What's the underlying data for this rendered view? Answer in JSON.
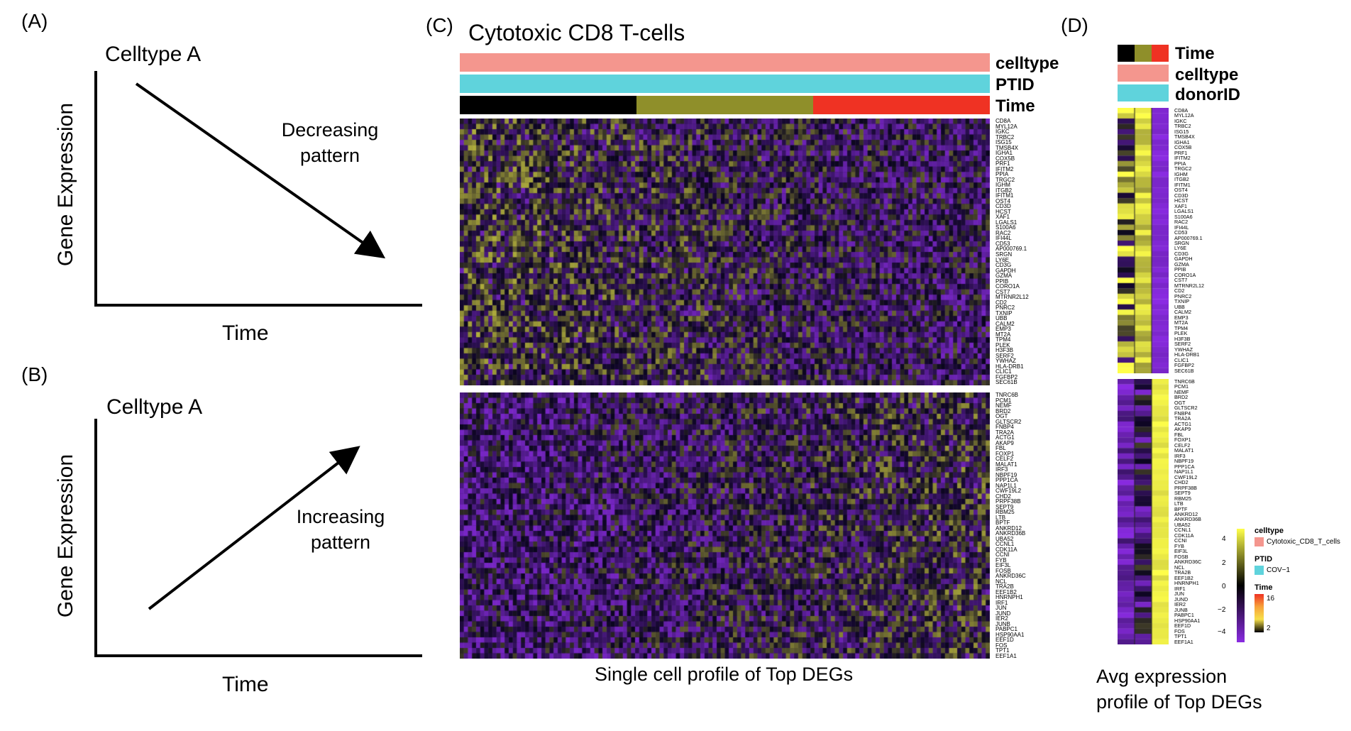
{
  "panelA": {
    "letter": "(A)",
    "title": "Celltype A",
    "ylabel": "Gene Expression",
    "xlabel": "Time",
    "pattern_line1": "Decreasing",
    "pattern_line2": "pattern"
  },
  "panelB": {
    "letter": "(B)",
    "title": "Celltype A",
    "ylabel": "Gene Expression",
    "xlabel": "Time",
    "pattern_line1": "Increasing",
    "pattern_line2": "pattern"
  },
  "panelC": {
    "letter": "(C)",
    "title": "Cytotoxic CD8 T-cells",
    "annotation_labels": [
      "celltype",
      "PTID",
      "Time"
    ],
    "caption": "Single cell profile of Top DEGs",
    "top_genes": [
      "CD8A",
      "MYL12A",
      "IGKC",
      "TRBC2",
      "ISG15",
      "TMSB4X",
      "IGHA1",
      "COX5B",
      "PRF1",
      "IFITM2",
      "PPIA",
      "TRGC2",
      "IGHM",
      "ITGB2",
      "IFITM1",
      "OST4",
      "CD3D",
      "HCST",
      "XAF1",
      "LGALS1",
      "S100A6",
      "RAC2",
      "IFI44L",
      "CD53",
      "AP000769.1",
      "SRGN",
      "LY6E",
      "CD3G",
      "GAPDH",
      "GZMA",
      "PPIB",
      "CORO1A",
      "CST7",
      "MTRNR2L12",
      "CD2",
      "PNRC2",
      "TXNIP",
      "UBB",
      "CALM2",
      "EMP3",
      "MT2A",
      "TPM4",
      "PLEK",
      "H3F3B",
      "SERF2",
      "YWHAZ",
      "HLA-DRB1",
      "CLIC1",
      "FGFBP2",
      "SEC61B"
    ],
    "bottom_genes": [
      "TNRC6B",
      "PCM1",
      "NEMF",
      "BRD2",
      "OGT",
      "GLTSCR2",
      "FNBP4",
      "TRA2A",
      "ACTG1",
      "AKAP9",
      "FBL",
      "FOXP1",
      "CELF2",
      "MALAT1",
      "IRF3",
      "NBPF19",
      "PPP1CA",
      "NAP1L1",
      "CWF19L2",
      "CHD2",
      "PRPF38B",
      "SEPT9",
      "RBM25",
      "LTB",
      "BPTF",
      "ANKRD12",
      "ANKRD36B",
      "UBA52",
      "CCNL1",
      "CDK11A",
      "CCNI",
      "FYB",
      "EIF3L",
      "FOSB",
      "ANKRD36C",
      "NCL",
      "TRA2B",
      "EEF1B2",
      "HNRNPH1",
      "IRF1",
      "JUN",
      "JUND",
      "IER2",
      "JUNB",
      "PABPC1",
      "HSP90AA1",
      "EEF1D",
      "FOS",
      "TPT1",
      "EEF1A1"
    ]
  },
  "panelD": {
    "letter": "(D)",
    "annotation_labels": [
      "Time",
      "celltype",
      "donorID"
    ],
    "caption_line1": "Avg expression",
    "caption_line2": "profile of Top DEGs",
    "legend": {
      "scale_ticks": [
        "4",
        "2",
        "0",
        "−2",
        "−4"
      ],
      "celltype_title": "celltype",
      "celltype_value": "Cytotoxic_CD8_T_cells",
      "ptid_title": "PTID",
      "ptid_value": "COV−1",
      "time_title": "Time",
      "time_high": "16",
      "time_low": "2"
    }
  },
  "colors": {
    "celltype": "#f4968e",
    "ptid": "#5fd3dc",
    "time_early": "#000000",
    "time_mid": "#8f8f2a",
    "time_late": "#ef3223",
    "heat_low": "#8a2be2",
    "heat_mid": "#000000",
    "heat_high": "#ffff4a",
    "legend_time_mid": "#f7a23a",
    "legend_time_mid2": "#f7e04a"
  }
}
